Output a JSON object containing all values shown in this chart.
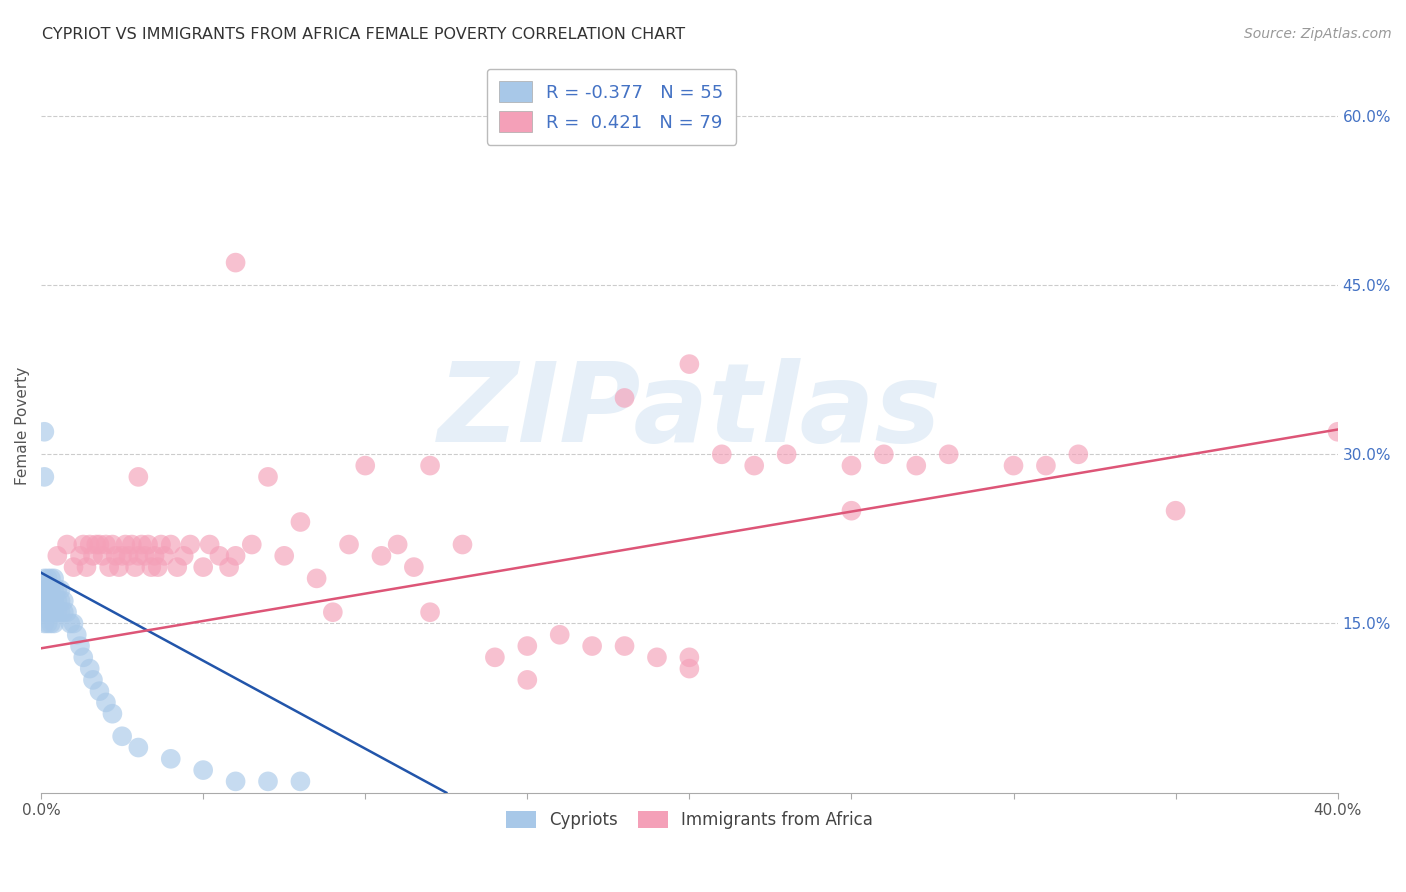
{
  "title": "CYPRIOT VS IMMIGRANTS FROM AFRICA FEMALE POVERTY CORRELATION CHART",
  "source": "Source: ZipAtlas.com",
  "ylabel": "Female Poverty",
  "x_min": 0.0,
  "x_max": 0.4,
  "y_min": 0.0,
  "y_max": 0.65,
  "x_ticks": [
    0.0,
    0.05,
    0.1,
    0.15,
    0.2,
    0.25,
    0.3,
    0.35,
    0.4
  ],
  "y_ticks_right": [
    0.15,
    0.3,
    0.45,
    0.6
  ],
  "y_tick_labels_right": [
    "15.0%",
    "30.0%",
    "45.0%",
    "60.0%"
  ],
  "legend_r1": "R = -0.377",
  "legend_n1": "N = 55",
  "legend_r2": "R =  0.421",
  "legend_n2": "N = 79",
  "color_blue": "#a8c8e8",
  "color_pink": "#f4a0b8",
  "color_blue_line": "#2255aa",
  "color_pink_line": "#dd5577",
  "color_title": "#333333",
  "color_grid": "#cccccc",
  "blue_line_x0": 0.0,
  "blue_line_y0": 0.195,
  "blue_line_x1": 0.125,
  "blue_line_y1": 0.0,
  "pink_line_x0": 0.0,
  "pink_line_y0": 0.128,
  "pink_line_x1": 0.4,
  "pink_line_y1": 0.322,
  "blue_x": [
    0.001,
    0.001,
    0.001,
    0.001,
    0.001,
    0.001,
    0.002,
    0.002,
    0.002,
    0.002,
    0.002,
    0.002,
    0.002,
    0.002,
    0.003,
    0.003,
    0.003,
    0.003,
    0.003,
    0.003,
    0.003,
    0.004,
    0.004,
    0.004,
    0.004,
    0.004,
    0.004,
    0.005,
    0.005,
    0.005,
    0.006,
    0.006,
    0.006,
    0.007,
    0.007,
    0.008,
    0.009,
    0.01,
    0.011,
    0.012,
    0.013,
    0.015,
    0.016,
    0.018,
    0.02,
    0.022,
    0.025,
    0.03,
    0.04,
    0.05,
    0.06,
    0.07,
    0.08,
    0.001,
    0.001
  ],
  "blue_y": [
    0.19,
    0.18,
    0.17,
    0.17,
    0.16,
    0.15,
    0.19,
    0.18,
    0.18,
    0.17,
    0.17,
    0.16,
    0.16,
    0.15,
    0.19,
    0.18,
    0.18,
    0.17,
    0.17,
    0.16,
    0.15,
    0.19,
    0.18,
    0.17,
    0.17,
    0.16,
    0.15,
    0.18,
    0.17,
    0.16,
    0.18,
    0.17,
    0.16,
    0.17,
    0.16,
    0.16,
    0.15,
    0.15,
    0.14,
    0.13,
    0.12,
    0.11,
    0.1,
    0.09,
    0.08,
    0.07,
    0.05,
    0.04,
    0.03,
    0.02,
    0.01,
    0.01,
    0.01,
    0.32,
    0.28
  ],
  "pink_x": [
    0.005,
    0.008,
    0.01,
    0.012,
    0.013,
    0.014,
    0.015,
    0.016,
    0.017,
    0.018,
    0.019,
    0.02,
    0.021,
    0.022,
    0.023,
    0.024,
    0.025,
    0.026,
    0.027,
    0.028,
    0.029,
    0.03,
    0.031,
    0.032,
    0.033,
    0.034,
    0.035,
    0.036,
    0.037,
    0.038,
    0.04,
    0.042,
    0.044,
    0.046,
    0.05,
    0.052,
    0.055,
    0.058,
    0.06,
    0.065,
    0.07,
    0.075,
    0.08,
    0.085,
    0.09,
    0.095,
    0.1,
    0.105,
    0.11,
    0.115,
    0.12,
    0.13,
    0.14,
    0.15,
    0.16,
    0.17,
    0.18,
    0.19,
    0.2,
    0.21,
    0.22,
    0.23,
    0.25,
    0.26,
    0.27,
    0.28,
    0.3,
    0.31,
    0.32,
    0.2,
    0.15,
    0.25,
    0.18,
    0.12,
    0.06,
    0.03,
    0.2,
    0.35,
    0.4
  ],
  "pink_y": [
    0.21,
    0.22,
    0.2,
    0.21,
    0.22,
    0.2,
    0.22,
    0.21,
    0.22,
    0.22,
    0.21,
    0.22,
    0.2,
    0.22,
    0.21,
    0.2,
    0.21,
    0.22,
    0.21,
    0.22,
    0.2,
    0.21,
    0.22,
    0.21,
    0.22,
    0.2,
    0.21,
    0.2,
    0.22,
    0.21,
    0.22,
    0.2,
    0.21,
    0.22,
    0.2,
    0.22,
    0.21,
    0.2,
    0.21,
    0.22,
    0.28,
    0.21,
    0.24,
    0.19,
    0.16,
    0.22,
    0.29,
    0.21,
    0.22,
    0.2,
    0.16,
    0.22,
    0.12,
    0.13,
    0.14,
    0.13,
    0.13,
    0.12,
    0.12,
    0.3,
    0.29,
    0.3,
    0.29,
    0.3,
    0.29,
    0.3,
    0.29,
    0.29,
    0.3,
    0.11,
    0.1,
    0.25,
    0.35,
    0.29,
    0.47,
    0.28,
    0.38,
    0.25,
    0.32
  ],
  "background_color": "#ffffff",
  "watermark_text": "ZIPatlas",
  "watermark_color": "#c8ddf0",
  "watermark_alpha": 0.45
}
